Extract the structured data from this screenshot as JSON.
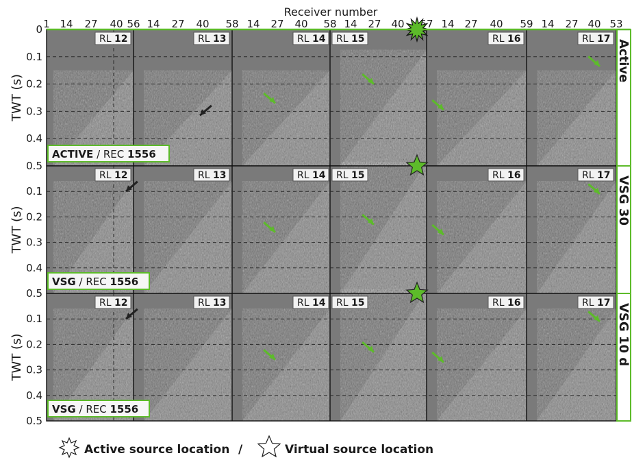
{
  "axis": {
    "top_title": "Receiver number",
    "y_label": "TWT (s)",
    "y_ticks": [
      "0",
      "0.1",
      "0.2",
      "0.3",
      "0.4",
      "0.5"
    ],
    "x_ticks": [
      "1",
      "14",
      "27",
      "40",
      "56",
      "14",
      "27",
      "40",
      "58",
      "14",
      "27",
      "40",
      "58",
      "14",
      "27",
      "40",
      "57",
      "14",
      "27",
      "40",
      "59",
      "14",
      "27",
      "40",
      "53"
    ]
  },
  "receiver_lines": [
    "12",
    "13",
    "14",
    "15",
    "16",
    "17"
  ],
  "rl_prefix": "RL",
  "rows": [
    {
      "side_label": "Active",
      "type_label": "ACTIVE",
      "rec_prefix": "REC",
      "rec_number": "1556",
      "source": "active"
    },
    {
      "side_label": "VSG 30",
      "type_label": "VSG",
      "rec_prefix": "REC",
      "rec_number": "1556",
      "source": "virtual"
    },
    {
      "side_label": "VSG 10 d",
      "type_label": "VSG",
      "rec_prefix": "REC",
      "rec_number": "1556",
      "source": "virtual"
    }
  ],
  "legend": {
    "active": "Active source location",
    "separator": "/",
    "virtual": "Virtual source location"
  },
  "colors": {
    "panel": "#7a7a7a",
    "accent_green": "#5dbb2a",
    "black_arrow": "#222222",
    "grid": "#2a2a2a"
  }
}
